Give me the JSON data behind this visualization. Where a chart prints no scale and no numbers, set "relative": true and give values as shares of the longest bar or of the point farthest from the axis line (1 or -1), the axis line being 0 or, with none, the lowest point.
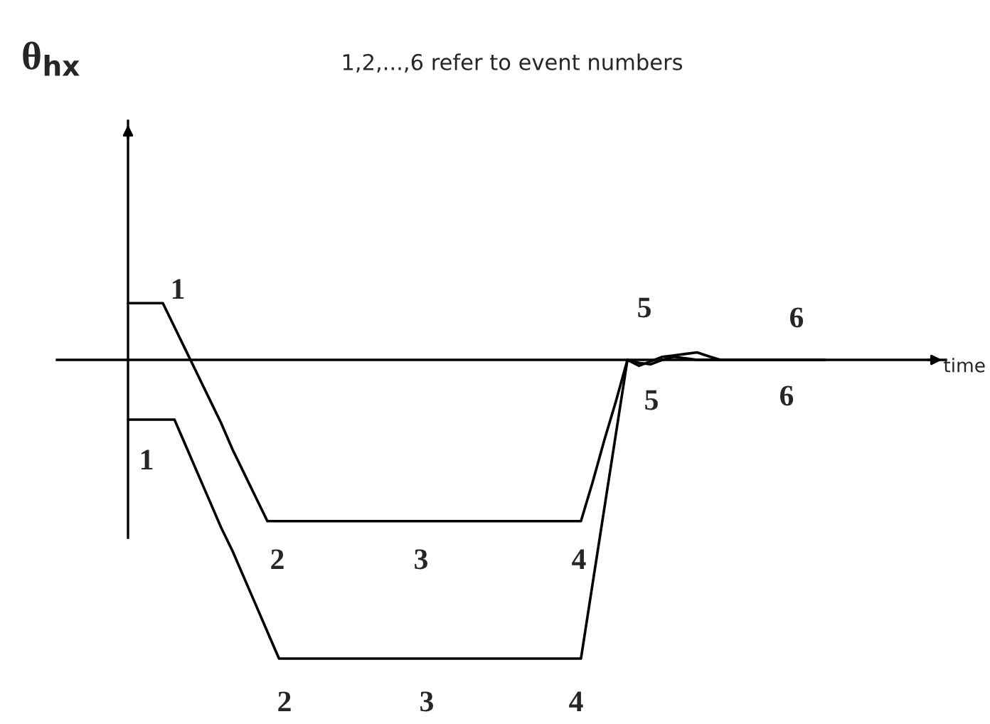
{
  "chart_data": {
    "type": "line",
    "relative": true,
    "legend": false,
    "grid": false,
    "marker": "none",
    "line_style": "solid",
    "categories": [
      null,
      null,
      null,
      null,
      null,
      null,
      null,
      null,
      null,
      null,
      null,
      null,
      null,
      null,
      null,
      null,
      null,
      null,
      null,
      null,
      null,
      null,
      null,
      null,
      null,
      null,
      null,
      null,
      null,
      null,
      null,
      null,
      null,
      null,
      null,
      null,
      null,
      null,
      null,
      null,
      null,
      null,
      null,
      null,
      null,
      null,
      null,
      null,
      null,
      null,
      null,
      null,
      null,
      null,
      null,
      null,
      null,
      null,
      null,
      null,
      null
    ],
    "series": [
      {
        "color": "#000000",
        "values": [
          0.19,
          0.19,
          0.19,
          0.19,
          0.11,
          0.03,
          -0.05,
          -0.13,
          -0.21,
          -0.3,
          -0.38,
          -0.46,
          -0.54,
          -0.54,
          -0.54,
          -0.54,
          -0.54,
          -0.54,
          -0.54,
          -0.54,
          -0.54,
          -0.54,
          -0.54,
          -0.54,
          -0.54,
          -0.54,
          -0.54,
          -0.54,
          -0.54,
          -0.54,
          -0.54,
          -0.54,
          -0.54,
          -0.54,
          -0.54,
          -0.54,
          -0.54,
          -0.54,
          -0.54,
          -0.54,
          -0.41,
          -0.27,
          -0.14,
          0,
          -0.02,
          -0.005,
          0.01,
          0.015,
          0.02,
          0.025,
          0.012,
          0,
          0,
          0,
          0,
          0,
          0,
          0,
          0,
          0,
          0
        ]
      },
      {
        "color": "#000000",
        "values": [
          -0.2,
          -0.2,
          -0.2,
          -0.2,
          -0.2,
          -0.29,
          -0.38,
          -0.47,
          -0.56,
          -0.64,
          -0.73,
          -0.82,
          -0.91,
          -1,
          -1,
          -1,
          -1,
          -1,
          -1,
          -1,
          -1,
          -1,
          -1,
          -1,
          -1,
          -1,
          -1,
          -1,
          -1,
          -1,
          -1,
          -1,
          -1,
          -1,
          -1,
          -1,
          -1,
          -1,
          -1,
          -1,
          -0.75,
          -0.5,
          -0.25,
          0,
          -0.01,
          -0.015,
          0,
          0.01,
          0.005,
          0,
          0,
          0,
          0,
          0,
          0,
          0,
          0,
          0,
          0,
          0,
          0
        ]
      }
    ],
    "annotations": [
      "1,2,...,6 refer to event numbers",
      "θ$_{hx}$",
      "time",
      "1",
      "2",
      "3",
      "4",
      "5",
      "6",
      "1",
      "2",
      "3",
      "4",
      "5",
      "6"
    ]
  }
}
